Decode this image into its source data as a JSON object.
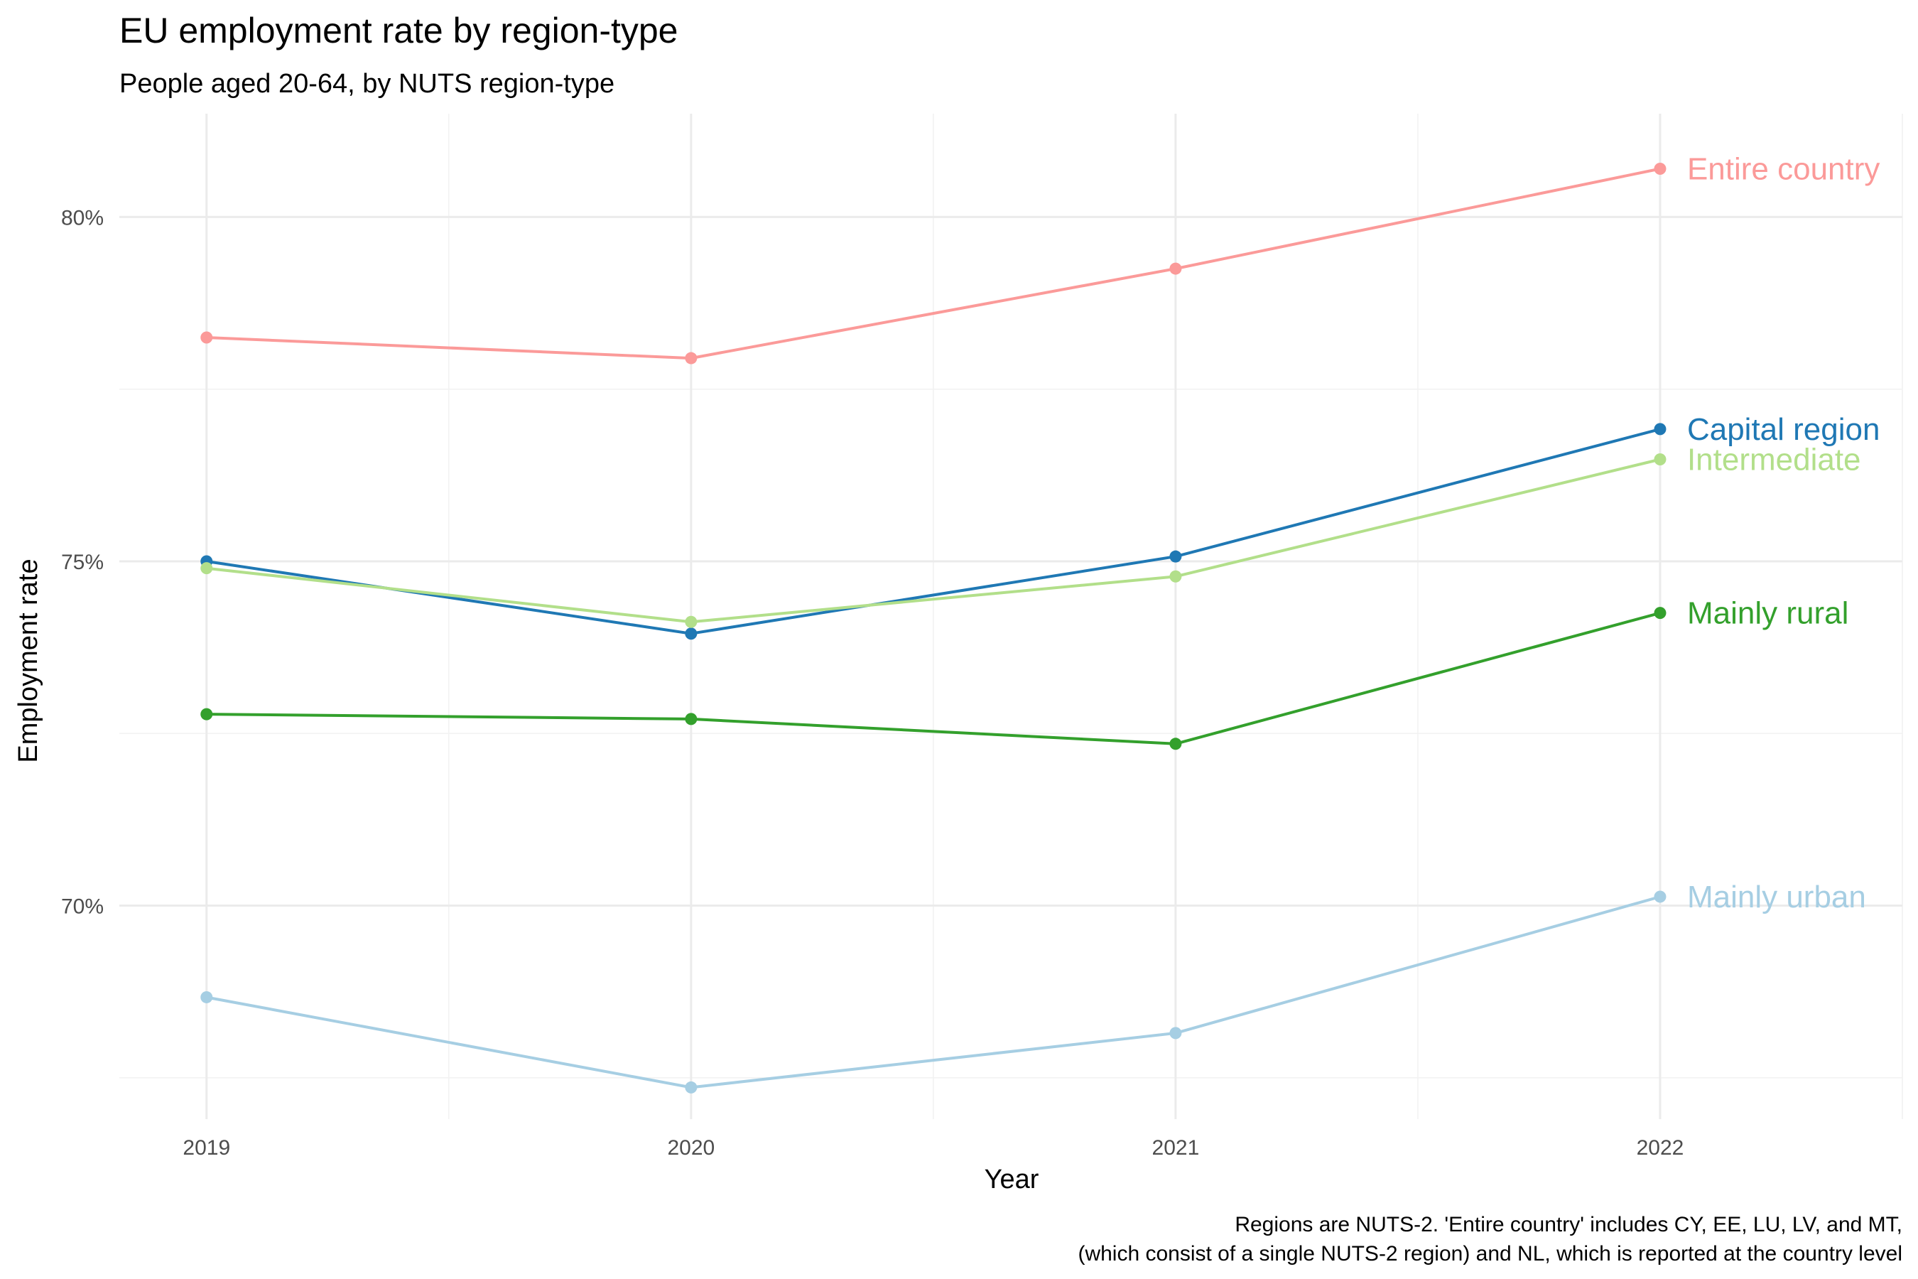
{
  "chart_data": {
    "type": "line",
    "title": "EU employment rate by region-type",
    "subtitle": "People aged 20-64, by NUTS region-type",
    "xlabel": "Year",
    "ylabel": "Employment rate",
    "caption": [
      "Regions are NUTS-2. 'Entire country' includes CY, EE, LU, LV, and MT,",
      "(which consist of a single NUTS-2 region) and NL, which is reported at the country level"
    ],
    "x": [
      2019,
      2020,
      2021,
      2022
    ],
    "x_tick_labels": [
      "2019",
      "2020",
      "2021",
      "2022"
    ],
    "xlim": [
      2018.82,
      2022.5
    ],
    "ylim": [
      66.9,
      81.5
    ],
    "y_ticks": [
      70,
      75,
      80
    ],
    "y_tick_labels": [
      "70%",
      "75%",
      "80%"
    ],
    "grid": true,
    "legend": "direct labels at line ends",
    "series": [
      {
        "name": "Entire country",
        "color": "#fb9a99",
        "values": [
          78.25,
          77.95,
          79.25,
          80.7
        ]
      },
      {
        "name": "Capital region",
        "color": "#1f78b4",
        "values": [
          75.0,
          73.95,
          75.07,
          76.92
        ]
      },
      {
        "name": "Intermediate",
        "color": "#b2df8a",
        "values": [
          74.9,
          74.12,
          74.78,
          76.48
        ]
      },
      {
        "name": "Mainly rural",
        "color": "#33a02c",
        "values": [
          72.78,
          72.71,
          72.35,
          74.25
        ]
      },
      {
        "name": "Mainly urban",
        "color": "#a6cee3",
        "values": [
          68.67,
          67.36,
          68.15,
          70.13
        ]
      }
    ]
  }
}
